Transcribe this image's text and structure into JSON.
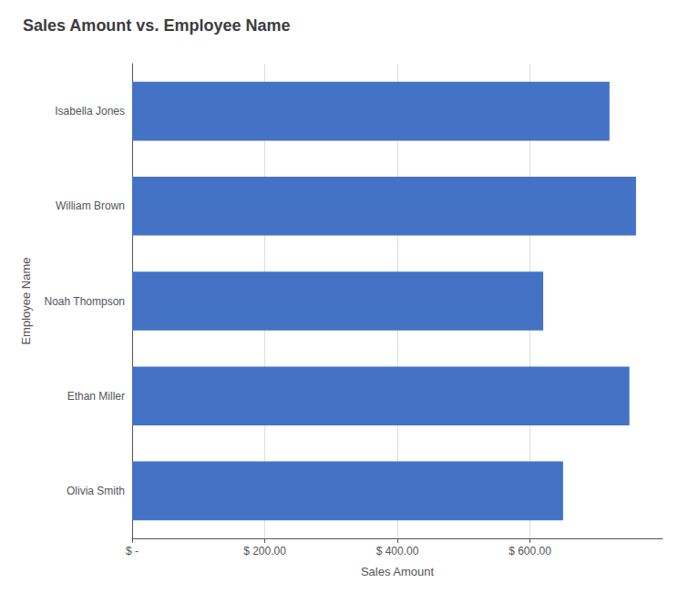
{
  "chart_data": {
    "type": "bar",
    "orientation": "horizontal",
    "title": "Sales Amount vs. Employee Name",
    "categories": [
      "Olivia Smith",
      "Ethan Miller",
      "Noah Thompson",
      "William Brown",
      "Isabella Jones"
    ],
    "values": [
      650,
      750,
      620,
      760,
      720
    ],
    "color": "#4472C4",
    "xlabel": "Sales Amount",
    "ylabel": "Employee Name",
    "xlim": [
      0,
      800
    ],
    "xticks": [
      {
        "value": 0,
        "label": "$ -"
      },
      {
        "value": 200,
        "label": "$ 200.00"
      },
      {
        "value": 400,
        "label": "$ 400.00"
      },
      {
        "value": 600,
        "label": "$ 600.00"
      }
    ],
    "grid": true
  }
}
